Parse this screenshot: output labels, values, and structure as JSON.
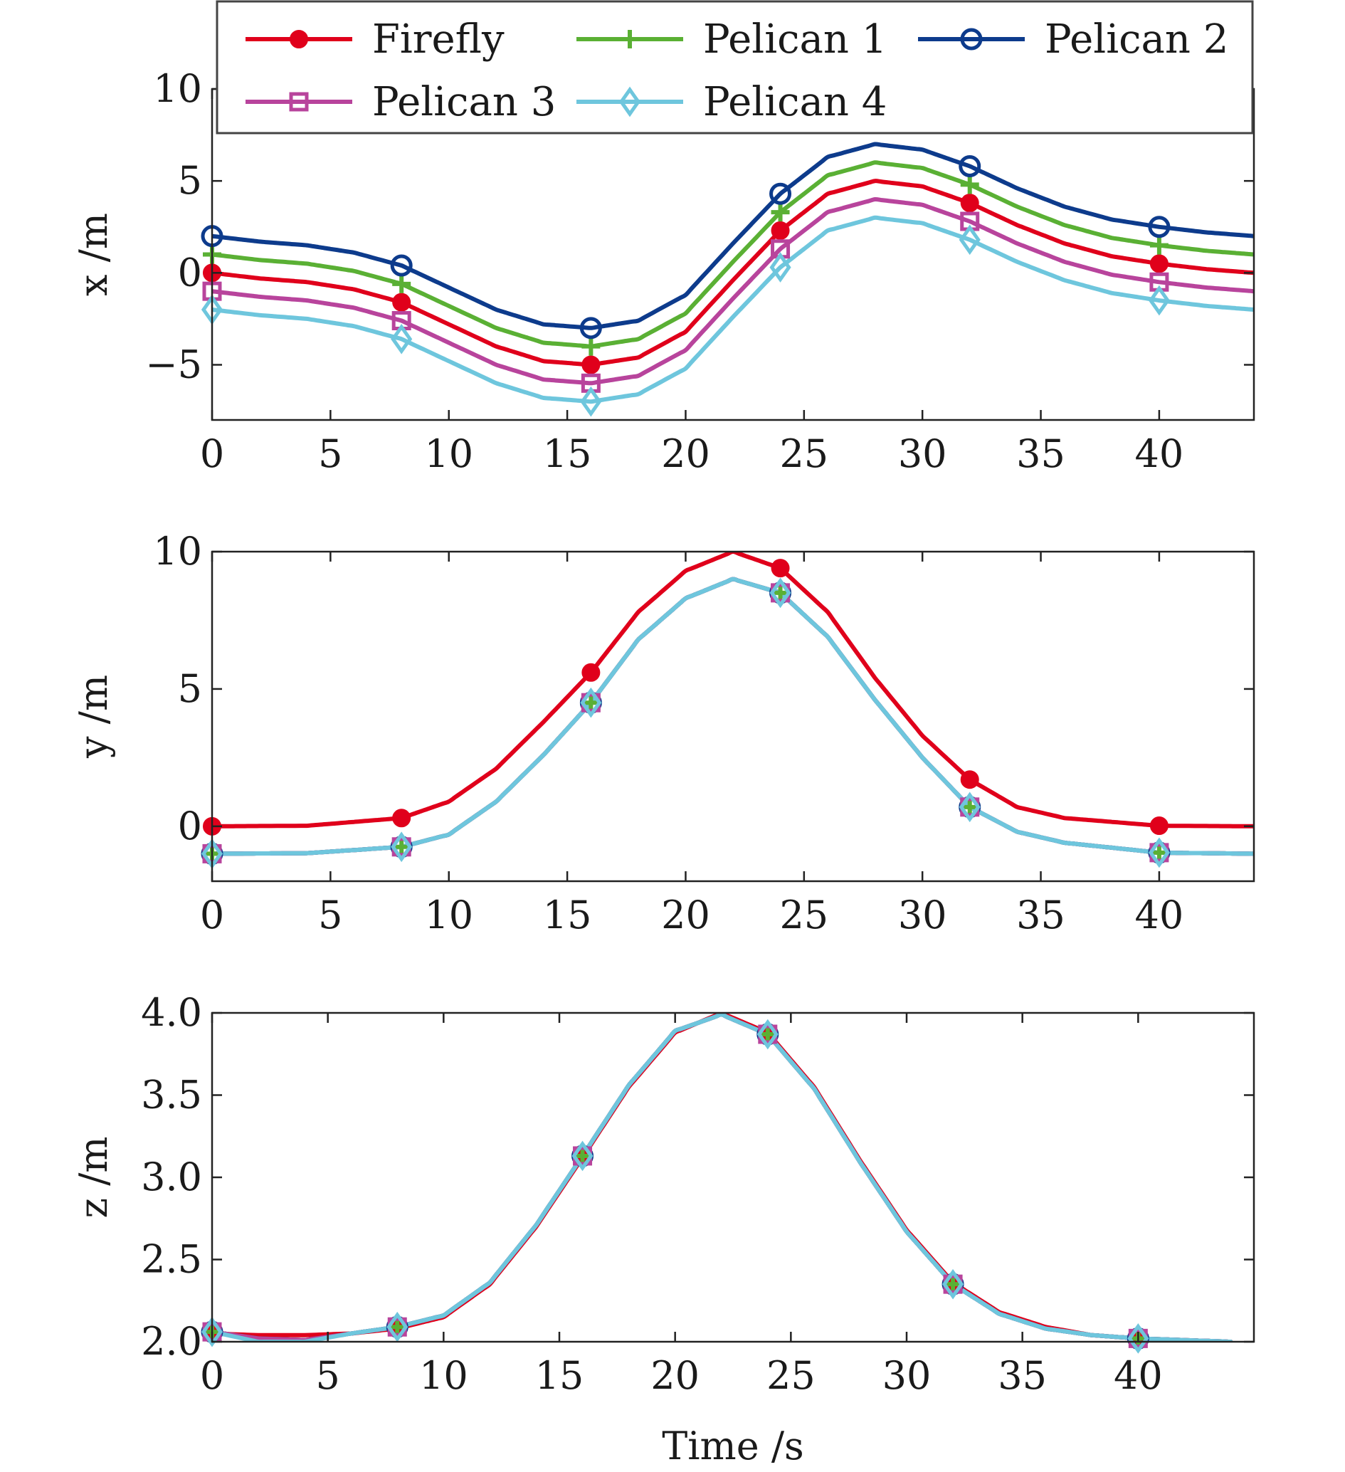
{
  "chart_data": [
    {
      "type": "line",
      "ylabel": "x /m",
      "xlim": [
        0,
        44
      ],
      "ylim": [
        -8,
        10
      ],
      "xticks": [
        "0",
        "5",
        "10",
        "15",
        "20",
        "25",
        "30",
        "35",
        "40"
      ],
      "yticks": [
        "−5",
        "0",
        "5",
        "10"
      ],
      "series": [
        {
          "name": "Firefly",
          "x": [
            0,
            2,
            4,
            6,
            8,
            10,
            12,
            14,
            16,
            18,
            20,
            22,
            24,
            26,
            28,
            30,
            32,
            34,
            36,
            38,
            40,
            42,
            44
          ],
          "y": [
            0,
            -0.3,
            -0.5,
            -0.9,
            -1.6,
            -2.8,
            -4.0,
            -4.8,
            -5.0,
            -4.6,
            -3.2,
            -0.4,
            2.3,
            4.3,
            5.0,
            4.7,
            3.8,
            2.6,
            1.6,
            0.9,
            0.5,
            0.2,
            0.0
          ]
        },
        {
          "name": "Pelican 1",
          "x": [
            0,
            2,
            4,
            6,
            8,
            10,
            12,
            14,
            16,
            18,
            20,
            22,
            24,
            26,
            28,
            30,
            32,
            34,
            36,
            38,
            40,
            42,
            44
          ],
          "y": [
            1,
            0.7,
            0.5,
            0.1,
            -0.6,
            -1.8,
            -3.0,
            -3.8,
            -4.0,
            -3.6,
            -2.2,
            0.6,
            3.3,
            5.3,
            6.0,
            5.7,
            4.8,
            3.6,
            2.6,
            1.9,
            1.5,
            1.2,
            1.0
          ]
        },
        {
          "name": "Pelican 2",
          "x": [
            0,
            2,
            4,
            6,
            8,
            10,
            12,
            14,
            16,
            18,
            20,
            22,
            24,
            26,
            28,
            30,
            32,
            34,
            36,
            38,
            40,
            42,
            44
          ],
          "y": [
            2,
            1.7,
            1.5,
            1.1,
            0.4,
            -0.8,
            -2.0,
            -2.8,
            -3.0,
            -2.6,
            -1.2,
            1.6,
            4.3,
            6.3,
            7.0,
            6.7,
            5.8,
            4.6,
            3.6,
            2.9,
            2.5,
            2.2,
            2.0
          ]
        },
        {
          "name": "Pelican 3",
          "x": [
            0,
            2,
            4,
            6,
            8,
            10,
            12,
            14,
            16,
            18,
            20,
            22,
            24,
            26,
            28,
            30,
            32,
            34,
            36,
            38,
            40,
            42,
            44
          ],
          "y": [
            -1,
            -1.3,
            -1.5,
            -1.9,
            -2.6,
            -3.8,
            -5.0,
            -5.8,
            -6.0,
            -5.6,
            -4.2,
            -1.4,
            1.3,
            3.3,
            4.0,
            3.7,
            2.8,
            1.6,
            0.6,
            -0.1,
            -0.5,
            -0.8,
            -1.0
          ]
        },
        {
          "name": "Pelican 4",
          "x": [
            0,
            2,
            4,
            6,
            8,
            10,
            12,
            14,
            16,
            18,
            20,
            22,
            24,
            26,
            28,
            30,
            32,
            34,
            36,
            38,
            40,
            42,
            44
          ],
          "y": [
            -2,
            -2.3,
            -2.5,
            -2.9,
            -3.6,
            -4.8,
            -6.0,
            -6.8,
            -7.0,
            -6.6,
            -5.2,
            -2.4,
            0.3,
            2.3,
            3.0,
            2.7,
            1.8,
            0.6,
            -0.4,
            -1.1,
            -1.5,
            -1.8,
            -2.0
          ]
        }
      ]
    },
    {
      "type": "line",
      "ylabel": "y /m",
      "xlim": [
        0,
        44
      ],
      "ylim": [
        -2,
        10
      ],
      "xticks": [
        "0",
        "5",
        "10",
        "15",
        "20",
        "25",
        "30",
        "35",
        "40"
      ],
      "yticks": [
        "0",
        "5",
        "10"
      ],
      "series": [
        {
          "name": "Firefly",
          "x": [
            0,
            4,
            8,
            10,
            12,
            14,
            16,
            18,
            20,
            22,
            24,
            26,
            28,
            30,
            32,
            34,
            36,
            40,
            44
          ],
          "y": [
            0,
            0.02,
            0.3,
            0.9,
            2.1,
            3.8,
            5.6,
            7.8,
            9.3,
            10.0,
            9.4,
            7.8,
            5.4,
            3.3,
            1.7,
            0.7,
            0.3,
            0.02,
            0.0
          ]
        },
        {
          "name": "Pelican 1",
          "x": [
            0,
            4,
            8,
            10,
            12,
            14,
            16,
            18,
            20,
            22,
            24,
            26,
            28,
            30,
            32,
            34,
            36,
            40,
            44
          ],
          "y": [
            -1,
            -0.98,
            -0.75,
            -0.3,
            0.9,
            2.6,
            4.5,
            6.8,
            8.3,
            9.0,
            8.5,
            6.9,
            4.6,
            2.5,
            0.7,
            -0.2,
            -0.6,
            -0.96,
            -1.0
          ]
        },
        {
          "name": "Pelican 2",
          "x": [
            0,
            4,
            8,
            10,
            12,
            14,
            16,
            18,
            20,
            22,
            24,
            26,
            28,
            30,
            32,
            34,
            36,
            40,
            44
          ],
          "y": [
            -1,
            -0.98,
            -0.75,
            -0.3,
            0.9,
            2.6,
            4.5,
            6.8,
            8.3,
            9.0,
            8.5,
            6.9,
            4.6,
            2.5,
            0.7,
            -0.2,
            -0.6,
            -0.96,
            -1.0
          ]
        },
        {
          "name": "Pelican 3",
          "x": [
            0,
            4,
            8,
            10,
            12,
            14,
            16,
            18,
            20,
            22,
            24,
            26,
            28,
            30,
            32,
            34,
            36,
            40,
            44
          ],
          "y": [
            -1,
            -0.98,
            -0.75,
            -0.3,
            0.9,
            2.6,
            4.5,
            6.8,
            8.3,
            9.0,
            8.5,
            6.9,
            4.6,
            2.5,
            0.7,
            -0.2,
            -0.6,
            -0.96,
            -1.0
          ]
        },
        {
          "name": "Pelican 4",
          "x": [
            0,
            4,
            8,
            10,
            12,
            14,
            16,
            18,
            20,
            22,
            24,
            26,
            28,
            30,
            32,
            34,
            36,
            40,
            44
          ],
          "y": [
            -1,
            -0.98,
            -0.75,
            -0.3,
            0.9,
            2.6,
            4.5,
            6.8,
            8.3,
            9.0,
            8.5,
            6.9,
            4.6,
            2.5,
            0.7,
            -0.2,
            -0.6,
            -0.96,
            -1.0
          ]
        }
      ]
    },
    {
      "type": "line",
      "xlabel": "Time /s",
      "ylabel": "z /m",
      "xlim": [
        0,
        45
      ],
      "ylim": [
        2.0,
        4.0
      ],
      "xticks": [
        "0",
        "5",
        "10",
        "15",
        "20",
        "25",
        "30",
        "35",
        "40"
      ],
      "yticks": [
        "2.0",
        "2.5",
        "3.0",
        "3.5",
        "4.0"
      ],
      "series": [
        {
          "name": "Firefly",
          "x": [
            0,
            2,
            4,
            6,
            8,
            10,
            12,
            14,
            16,
            18,
            20,
            22,
            24,
            26,
            28,
            30,
            32,
            34,
            36,
            38,
            40,
            42,
            44
          ],
          "y": [
            2.05,
            2.04,
            2.04,
            2.05,
            2.08,
            2.15,
            2.35,
            2.7,
            3.12,
            3.55,
            3.88,
            4.0,
            3.88,
            3.55,
            3.1,
            2.68,
            2.36,
            2.18,
            2.09,
            2.04,
            2.02,
            2.01,
            2.0
          ]
        },
        {
          "name": "Pelican 1",
          "x": [
            0,
            2,
            4,
            6,
            8,
            10,
            12,
            14,
            16,
            18,
            20,
            22,
            24,
            26,
            28,
            30,
            32,
            34,
            36,
            38,
            40,
            42,
            44
          ],
          "y": [
            2.06,
            2.02,
            2.01,
            2.05,
            2.09,
            2.16,
            2.36,
            2.71,
            3.13,
            3.56,
            3.89,
            3.99,
            3.87,
            3.54,
            3.09,
            2.67,
            2.35,
            2.17,
            2.08,
            2.04,
            2.02,
            2.01,
            2.0
          ]
        },
        {
          "name": "Pelican 2",
          "x": [
            0,
            2,
            4,
            6,
            8,
            10,
            12,
            14,
            16,
            18,
            20,
            22,
            24,
            26,
            28,
            30,
            32,
            34,
            36,
            38,
            40,
            42,
            44
          ],
          "y": [
            2.06,
            2.02,
            2.01,
            2.05,
            2.09,
            2.16,
            2.36,
            2.71,
            3.13,
            3.56,
            3.89,
            3.99,
            3.87,
            3.54,
            3.09,
            2.67,
            2.35,
            2.17,
            2.08,
            2.04,
            2.02,
            2.01,
            2.0
          ]
        },
        {
          "name": "Pelican 3",
          "x": [
            0,
            2,
            4,
            6,
            8,
            10,
            12,
            14,
            16,
            18,
            20,
            22,
            24,
            26,
            28,
            30,
            32,
            34,
            36,
            38,
            40,
            42,
            44
          ],
          "y": [
            2.06,
            2.02,
            2.01,
            2.05,
            2.09,
            2.16,
            2.36,
            2.71,
            3.13,
            3.56,
            3.89,
            3.99,
            3.87,
            3.54,
            3.09,
            2.67,
            2.35,
            2.17,
            2.08,
            2.04,
            2.02,
            2.01,
            2.0
          ]
        },
        {
          "name": "Pelican 4",
          "x": [
            0,
            2,
            4,
            6,
            8,
            10,
            12,
            14,
            16,
            18,
            20,
            22,
            24,
            26,
            28,
            30,
            32,
            34,
            36,
            38,
            40,
            42,
            44
          ],
          "y": [
            2.06,
            2.0,
            2.0,
            2.05,
            2.09,
            2.16,
            2.36,
            2.71,
            3.13,
            3.56,
            3.89,
            3.99,
            3.87,
            3.54,
            3.09,
            2.67,
            2.35,
            2.17,
            2.08,
            2.04,
            2.02,
            2.01,
            2.0
          ]
        }
      ]
    }
  ],
  "legend": {
    "placement": "top-center",
    "items": [
      {
        "label": "Firefly",
        "color": "#e0001b",
        "marker": "filled-circle"
      },
      {
        "label": "Pelican 1",
        "color": "#5ab034",
        "marker": "plus"
      },
      {
        "label": "Pelican 2",
        "color": "#0d3b8c",
        "marker": "open-circle"
      },
      {
        "label": "Pelican 3",
        "color": "#b8449c",
        "marker": "open-square"
      },
      {
        "label": "Pelican 4",
        "color": "#6ec6dd",
        "marker": "open-diamond"
      }
    ]
  }
}
